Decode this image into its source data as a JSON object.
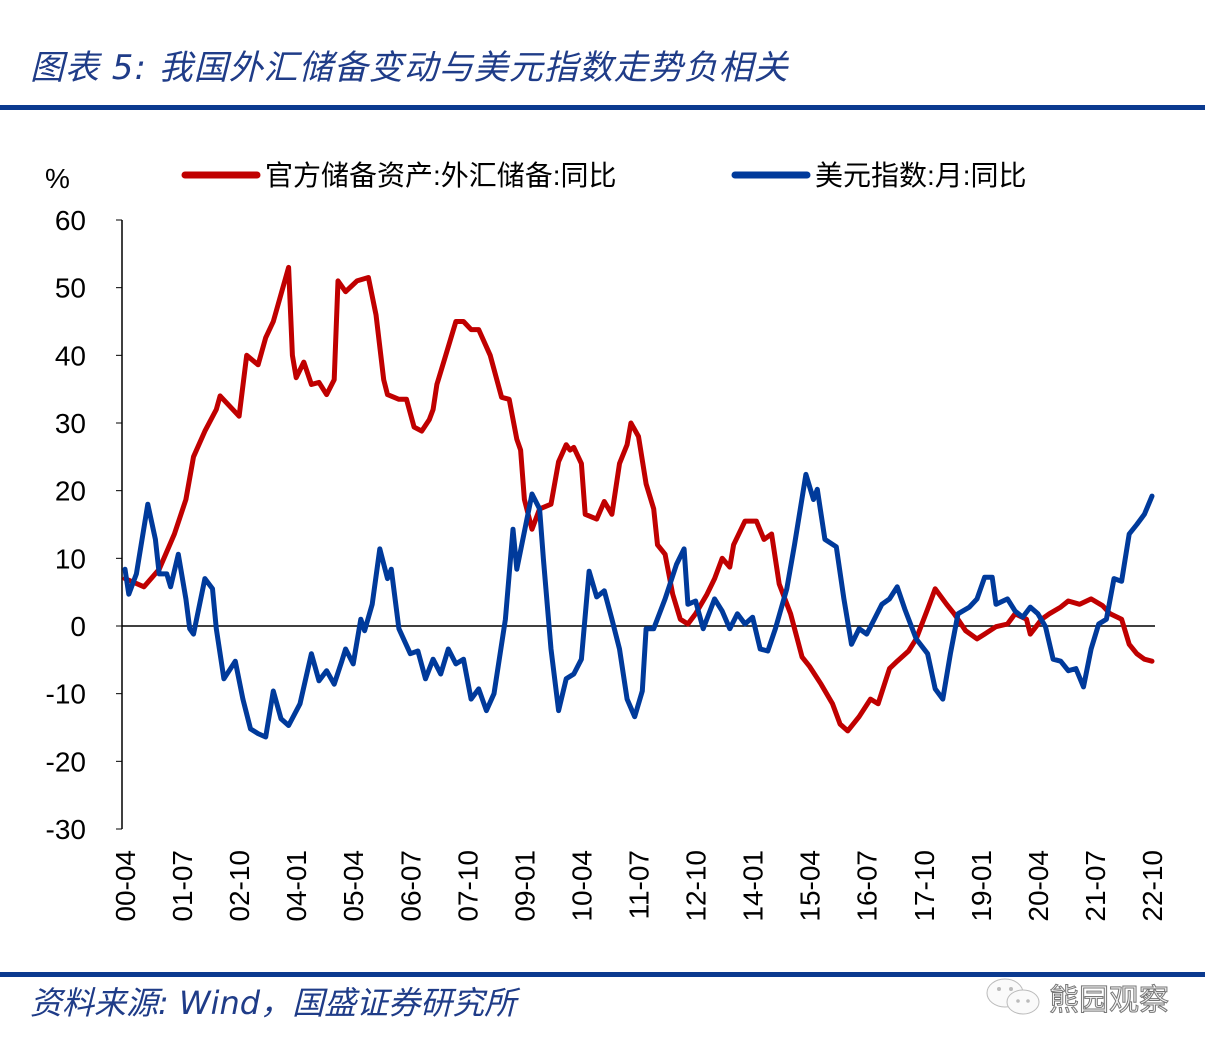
{
  "header": {
    "title": "图表 5:  我国外汇储备变动与美元指数走势负相关"
  },
  "footer": {
    "source": "资料来源:  Wind，国盛证券研究所",
    "watermark": "熊园观察"
  },
  "colors": {
    "rule": "#0b3a8f",
    "title": "#1f3c88",
    "series_red": "#c00000",
    "series_blue": "#003a9b"
  },
  "chart_data": {
    "type": "line",
    "ylabel": "%",
    "ylim": [
      -30,
      60
    ],
    "yticks": [
      60,
      50,
      40,
      30,
      20,
      10,
      0,
      -10,
      -20,
      -30
    ],
    "xlim": [
      "2000-04",
      "2022-10"
    ],
    "xticks": [
      "00-04",
      "01-07",
      "02-10",
      "04-01",
      "05-04",
      "06-07",
      "07-10",
      "09-01",
      "10-04",
      "11-07",
      "12-10",
      "14-01",
      "15-04",
      "16-07",
      "17-10",
      "19-01",
      "20-04",
      "21-07",
      "22-10"
    ],
    "legend_position": "top",
    "grid": false,
    "series": [
      {
        "name": "官方储备资产:外汇储备:同比",
        "color": "#c00000",
        "points": [
          [
            "2000-04",
            7
          ],
          [
            "2000-09",
            5.8
          ],
          [
            "2001-01",
            8.4
          ],
          [
            "2001-05",
            13.6
          ],
          [
            "2001-08",
            18.7
          ],
          [
            "2001-10",
            25
          ],
          [
            "2002-01",
            28.8
          ],
          [
            "2002-04",
            32
          ],
          [
            "2002-05",
            34
          ],
          [
            "2002-10",
            31
          ],
          [
            "2002-12",
            40
          ],
          [
            "2003-03",
            38.6
          ],
          [
            "2003-05",
            42.6
          ],
          [
            "2003-07",
            45
          ],
          [
            "2003-11",
            53
          ],
          [
            "2003-12",
            40
          ],
          [
            "2004-01",
            36.7
          ],
          [
            "2004-03",
            39
          ],
          [
            "2004-05",
            35.7
          ],
          [
            "2004-07",
            36
          ],
          [
            "2004-09",
            34.2
          ],
          [
            "2004-11",
            36.4
          ],
          [
            "2004-12",
            51
          ],
          [
            "2005-02",
            49.4
          ],
          [
            "2005-05",
            51
          ],
          [
            "2005-08",
            51.5
          ],
          [
            "2005-10",
            46
          ],
          [
            "2005-12",
            36.4
          ],
          [
            "2006-01",
            34.2
          ],
          [
            "2006-04",
            33.5
          ],
          [
            "2006-06",
            33.5
          ],
          [
            "2006-08",
            29.4
          ],
          [
            "2006-10",
            28.8
          ],
          [
            "2006-12",
            30.5
          ],
          [
            "2007-01",
            32
          ],
          [
            "2007-02",
            35.7
          ],
          [
            "2007-04",
            39.4
          ],
          [
            "2007-07",
            45
          ],
          [
            "2007-09",
            45
          ],
          [
            "2007-11",
            43.8
          ],
          [
            "2008-01",
            43.8
          ],
          [
            "2008-04",
            40
          ],
          [
            "2008-07",
            33.8
          ],
          [
            "2008-09",
            33.5
          ],
          [
            "2008-11",
            27.6
          ],
          [
            "2008-12",
            26
          ],
          [
            "2009-01",
            18.7
          ],
          [
            "2009-03",
            14.3
          ],
          [
            "2009-05",
            17.3
          ],
          [
            "2009-08",
            18
          ],
          [
            "2009-10",
            24.3
          ],
          [
            "2009-12",
            26.8
          ],
          [
            "2010-01",
            26
          ],
          [
            "2010-02",
            26.4
          ],
          [
            "2010-04",
            24
          ],
          [
            "2010-05",
            16.5
          ],
          [
            "2010-08",
            15.8
          ],
          [
            "2010-10",
            18.4
          ],
          [
            "2010-12",
            16.5
          ],
          [
            "2011-02",
            24
          ],
          [
            "2011-04",
            26.8
          ],
          [
            "2011-05",
            30
          ],
          [
            "2011-07",
            28
          ],
          [
            "2011-09",
            21
          ],
          [
            "2011-11",
            17.3
          ],
          [
            "2011-12",
            12
          ],
          [
            "2012-02",
            10.6
          ],
          [
            "2012-04",
            4.7
          ],
          [
            "2012-06",
            1
          ],
          [
            "2012-08",
            0.3
          ],
          [
            "2012-10",
            1.8
          ],
          [
            "2013-01",
            4.7
          ],
          [
            "2013-03",
            7
          ],
          [
            "2013-05",
            10
          ],
          [
            "2013-07",
            8.7
          ],
          [
            "2013-08",
            12
          ],
          [
            "2013-11",
            15.5
          ],
          [
            "2014-02",
            15.5
          ],
          [
            "2014-04",
            12.8
          ],
          [
            "2014-06",
            13.6
          ],
          [
            "2014-08",
            6.2
          ],
          [
            "2014-11",
            1.8
          ],
          [
            "2015-02",
            -4.6
          ],
          [
            "2015-04",
            -6
          ],
          [
            "2015-07",
            -8.6
          ],
          [
            "2015-10",
            -11.5
          ],
          [
            "2015-12",
            -14.5
          ],
          [
            "2016-02",
            -15.5
          ],
          [
            "2016-05",
            -13.4
          ],
          [
            "2016-08",
            -10.8
          ],
          [
            "2016-10",
            -11.5
          ],
          [
            "2017-01",
            -6.3
          ],
          [
            "2017-03",
            -5.2
          ],
          [
            "2017-06",
            -3.7
          ],
          [
            "2017-08",
            -1.9
          ],
          [
            "2017-11",
            2.5
          ],
          [
            "2018-01",
            5.5
          ],
          [
            "2018-04",
            3.2
          ],
          [
            "2018-06",
            1.8
          ],
          [
            "2018-09",
            -0.7
          ],
          [
            "2018-12",
            -1.9
          ],
          [
            "2019-02",
            -1.2
          ],
          [
            "2019-05",
            -0.1
          ],
          [
            "2019-08",
            0.3
          ],
          [
            "2019-10",
            1.8
          ],
          [
            "2020-01",
            1
          ],
          [
            "2020-02",
            -1.2
          ],
          [
            "2020-05",
            1
          ],
          [
            "2020-07",
            1.8
          ],
          [
            "2020-10",
            2.8
          ],
          [
            "2020-12",
            3.7
          ],
          [
            "2021-03",
            3.2
          ],
          [
            "2021-06",
            4
          ],
          [
            "2021-09",
            3
          ],
          [
            "2021-11",
            1.8
          ],
          [
            "2022-02",
            1
          ],
          [
            "2022-04",
            -2.7
          ],
          [
            "2022-06",
            -4.1
          ],
          [
            "2022-08",
            -4.9
          ],
          [
            "2022-10",
            -5.2
          ]
        ]
      },
      {
        "name": "美元指数:月:同比",
        "color": "#003a9b",
        "points": [
          [
            "2000-04",
            8.4
          ],
          [
            "2000-05",
            4.7
          ],
          [
            "2000-07",
            7.7
          ],
          [
            "2000-10",
            18
          ],
          [
            "2000-12",
            12.8
          ],
          [
            "2001-01",
            7.7
          ],
          [
            "2001-03",
            7.7
          ],
          [
            "2001-04",
            5.8
          ],
          [
            "2001-06",
            10.6
          ],
          [
            "2001-08",
            4
          ],
          [
            "2001-09",
            -0.4
          ],
          [
            "2001-10",
            -1.2
          ],
          [
            "2002-01",
            7
          ],
          [
            "2002-03",
            5.5
          ],
          [
            "2002-04",
            -0.4
          ],
          [
            "2002-06",
            -7.8
          ],
          [
            "2002-09",
            -5.2
          ],
          [
            "2002-11",
            -10.8
          ],
          [
            "2003-01",
            -15.2
          ],
          [
            "2003-03",
            -15.9
          ],
          [
            "2003-05",
            -16.4
          ],
          [
            "2003-07",
            -9.6
          ],
          [
            "2003-09",
            -13.7
          ],
          [
            "2003-11",
            -14.7
          ],
          [
            "2004-02",
            -11.5
          ],
          [
            "2004-05",
            -4.1
          ],
          [
            "2004-07",
            -8.1
          ],
          [
            "2004-09",
            -6.6
          ],
          [
            "2004-11",
            -8.6
          ],
          [
            "2005-01",
            -5.2
          ],
          [
            "2005-02",
            -3.4
          ],
          [
            "2005-04",
            -5.6
          ],
          [
            "2005-06",
            1
          ],
          [
            "2005-07",
            -0.7
          ],
          [
            "2005-09",
            3.2
          ],
          [
            "2005-11",
            11.4
          ],
          [
            "2006-01",
            7
          ],
          [
            "2006-02",
            8.4
          ],
          [
            "2006-04",
            -0.4
          ],
          [
            "2006-07",
            -4.1
          ],
          [
            "2006-09",
            -3.7
          ],
          [
            "2006-11",
            -7.8
          ],
          [
            "2007-01",
            -4.9
          ],
          [
            "2007-03",
            -7.1
          ],
          [
            "2007-05",
            -3.4
          ],
          [
            "2007-07",
            -5.6
          ],
          [
            "2007-09",
            -4.9
          ],
          [
            "2007-11",
            -10.8
          ],
          [
            "2008-01",
            -9.3
          ],
          [
            "2008-03",
            -12.5
          ],
          [
            "2008-05",
            -10
          ],
          [
            "2008-08",
            1
          ],
          [
            "2008-10",
            14.3
          ],
          [
            "2008-11",
            8.4
          ],
          [
            "2009-03",
            19.5
          ],
          [
            "2009-05",
            17.3
          ],
          [
            "2009-06",
            9.9
          ],
          [
            "2009-08",
            -3.4
          ],
          [
            "2009-10",
            -12.5
          ],
          [
            "2009-12",
            -7.8
          ],
          [
            "2010-02",
            -7.1
          ],
          [
            "2010-04",
            -4.9
          ],
          [
            "2010-06",
            8.1
          ],
          [
            "2010-08",
            4.3
          ],
          [
            "2010-10",
            5.2
          ],
          [
            "2010-12",
            1
          ],
          [
            "2011-02",
            -3.4
          ],
          [
            "2011-04",
            -10.8
          ],
          [
            "2011-06",
            -13.4
          ],
          [
            "2011-08",
            -9.6
          ],
          [
            "2011-09",
            -0.4
          ],
          [
            "2011-11",
            -0.4
          ],
          [
            "2012-02",
            4
          ],
          [
            "2012-05",
            9.1
          ],
          [
            "2012-07",
            11.4
          ],
          [
            "2012-08",
            3.2
          ],
          [
            "2012-10",
            3.7
          ],
          [
            "2012-12",
            -0.4
          ],
          [
            "2013-03",
            4
          ],
          [
            "2013-05",
            2.2
          ],
          [
            "2013-07",
            -0.4
          ],
          [
            "2013-09",
            1.8
          ],
          [
            "2013-11",
            0.3
          ],
          [
            "2014-01",
            1.3
          ],
          [
            "2014-03",
            -3.4
          ],
          [
            "2014-05",
            -3.7
          ],
          [
            "2014-07",
            -0.4
          ],
          [
            "2014-10",
            5.5
          ],
          [
            "2014-12",
            12
          ],
          [
            "2015-03",
            22.4
          ],
          [
            "2015-05",
            18.7
          ],
          [
            "2015-06",
            20.2
          ],
          [
            "2015-08",
            12.8
          ],
          [
            "2015-11",
            11.7
          ],
          [
            "2016-01",
            4
          ],
          [
            "2016-03",
            -2.7
          ],
          [
            "2016-05",
            -0.4
          ],
          [
            "2016-07",
            -1.2
          ],
          [
            "2016-09",
            1
          ],
          [
            "2016-11",
            3.2
          ],
          [
            "2017-01",
            4
          ],
          [
            "2017-03",
            5.8
          ],
          [
            "2017-05",
            2.5
          ],
          [
            "2017-08",
            -1.9
          ],
          [
            "2017-11",
            -4.1
          ],
          [
            "2018-01",
            -9.3
          ],
          [
            "2018-03",
            -10.8
          ],
          [
            "2018-05",
            -4.1
          ],
          [
            "2018-07",
            1.8
          ],
          [
            "2018-10",
            2.8
          ],
          [
            "2018-12",
            4
          ],
          [
            "2019-02",
            7.2
          ],
          [
            "2019-04",
            7.2
          ],
          [
            "2019-05",
            3.2
          ],
          [
            "2019-08",
            4
          ],
          [
            "2019-10",
            2.2
          ],
          [
            "2019-12",
            1.3
          ],
          [
            "2020-02",
            2.8
          ],
          [
            "2020-04",
            1.8
          ],
          [
            "2020-06",
            -0.1
          ],
          [
            "2020-08",
            -4.9
          ],
          [
            "2020-10",
            -5.2
          ],
          [
            "2020-12",
            -6.6
          ],
          [
            "2021-02",
            -6.3
          ],
          [
            "2021-04",
            -9
          ],
          [
            "2021-06",
            -3.4
          ],
          [
            "2021-08",
            0.3
          ],
          [
            "2021-10",
            1
          ],
          [
            "2021-12",
            7
          ],
          [
            "2022-02",
            6.6
          ],
          [
            "2022-04",
            13.6
          ],
          [
            "2022-06",
            15
          ],
          [
            "2022-08",
            16.5
          ],
          [
            "2022-10",
            19.2
          ]
        ]
      }
    ]
  }
}
